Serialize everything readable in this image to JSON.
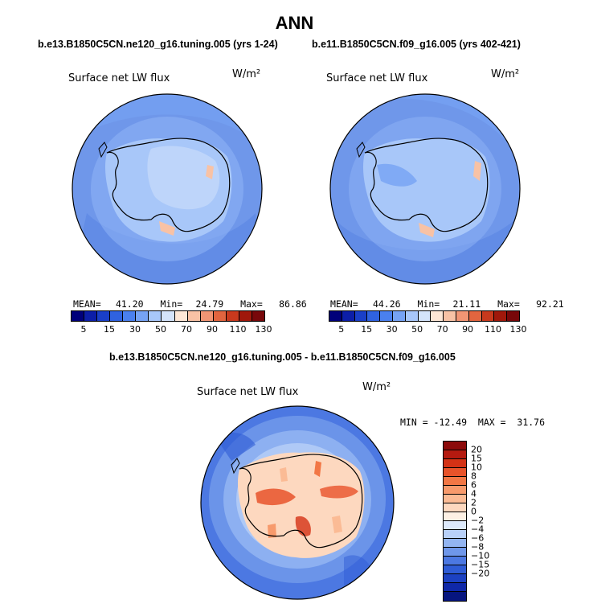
{
  "title": "ANN",
  "panels": [
    {
      "subtitle": "b.e13.B1850C5CN.ne120_g16.tuning.005 (yrs 1-24)",
      "field": "Surface net LW flux",
      "units": "W/m²",
      "mean_label": "MEAN=",
      "mean": "41.20",
      "min_label": "Min=",
      "min": "24.79",
      "max_label": "Max=",
      "max": "86.86"
    },
    {
      "subtitle": "b.e11.B1850C5CN.f09_g16.005 (yrs 402-421)",
      "field": "Surface net LW flux",
      "units": "W/m²",
      "mean_label": "MEAN=",
      "mean": "44.26",
      "min_label": "Min=",
      "min": "21.11",
      "max_label": "Max=",
      "max": "92.21"
    }
  ],
  "abs_colorbar": {
    "colors": [
      "#00007a",
      "#0c1ea8",
      "#1a3fc8",
      "#2f62e0",
      "#4a80ef",
      "#76a3f4",
      "#a8c7f9",
      "#d4e4fb",
      "#fde7d6",
      "#f8c2a5",
      "#f19574",
      "#e2653f",
      "#c8391d",
      "#a0180b",
      "#78080a"
    ],
    "ticks": [
      "5",
      "15",
      "30",
      "50",
      "70",
      "90",
      "110",
      "130"
    ]
  },
  "diff": {
    "subtitle": "b.e13.B1850C5CN.ne120_g16.tuning.005 - b.e11.B1850C5CN.f09_g16.005",
    "field": "Surface net LW flux",
    "units": "W/m²",
    "minmax_text": "MIN = -12.49  MAX =  31.76"
  },
  "diff_colorbar": {
    "colors": [
      "#8c0a0a",
      "#b51a10",
      "#d43215",
      "#e8532a",
      "#f27745",
      "#f79a6c",
      "#fbbb95",
      "#fdd8bf",
      "#fdf0e4",
      "#dde9fb",
      "#b8d0f8",
      "#93b5f2",
      "#6f97ea",
      "#4c78e2",
      "#2f5cd6",
      "#1c41c2",
      "#0f28a8",
      "#06157f"
    ],
    "ticks": [
      "20",
      "15",
      "10",
      "8",
      "6",
      "4",
      "2",
      "0",
      "−2",
      "−4",
      "−6",
      "−8",
      "−10",
      "−15",
      "−20"
    ]
  },
  "colors": {
    "ocean_base": "#6f97ea",
    "ice_base": "#a8c7f9",
    "warm": "#f8c2a5",
    "hot": "#d43215",
    "coast": "#000000"
  }
}
